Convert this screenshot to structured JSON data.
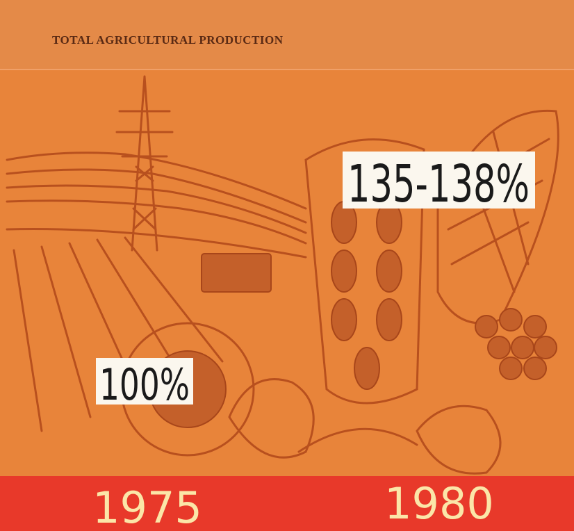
{
  "header": {
    "title": "TOTAL AGRICULTURAL PRODUCTION"
  },
  "periods": [
    {
      "year": "1975",
      "value": "100%"
    },
    {
      "year": "1980",
      "value": "135-138%"
    }
  ]
}
